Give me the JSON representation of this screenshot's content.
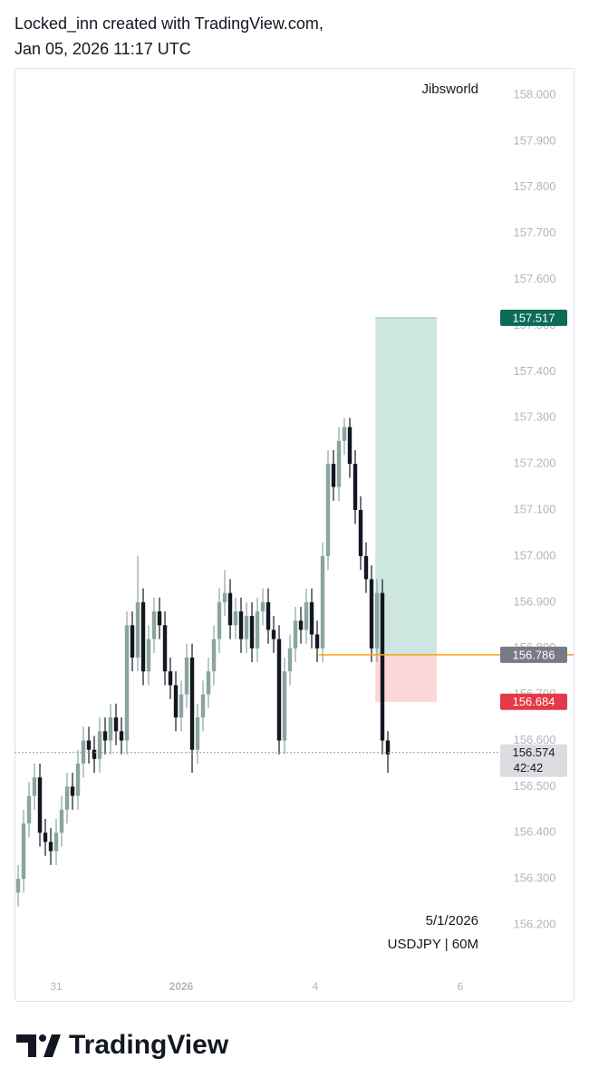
{
  "header": {
    "line1": "Locked_inn created with TradingView.com,",
    "line2": "Jan 05, 2026 11:17 UTC"
  },
  "footer": {
    "logo": "TradingView"
  },
  "chart_data": {
    "type": "candlestick",
    "watermark": "Jibsworld",
    "date_note": "5/1/2026",
    "symbol": "USDJPY | 60M",
    "up_color": "#8aa59c",
    "down_color": "#131722",
    "xlim": [
      -0.67,
      88
    ],
    "xticks": [
      {
        "value": 7,
        "label": "31"
      },
      {
        "value": 30,
        "label": "2026"
      },
      {
        "value": 54.67,
        "label": "4"
      },
      {
        "value": 81.33,
        "label": "6"
      }
    ],
    "ylim": [
      156.094,
      158.059
    ],
    "yticks": [
      {
        "value": 156.2,
        "label": "156.200"
      },
      {
        "value": 156.3,
        "label": "156.300"
      },
      {
        "value": 156.4,
        "label": "156.400"
      },
      {
        "value": 156.5,
        "label": "156.500"
      },
      {
        "value": 156.6,
        "label": "156.600"
      },
      {
        "value": 156.7,
        "label": "156.700"
      },
      {
        "value": 156.8,
        "label": "156.800"
      },
      {
        "value": 156.9,
        "label": "156.900"
      },
      {
        "value": 157.0,
        "label": "157.000"
      },
      {
        "value": 157.1,
        "label": "157.100"
      },
      {
        "value": 157.2,
        "label": "157.200"
      },
      {
        "value": 157.3,
        "label": "157.300"
      },
      {
        "value": 157.4,
        "label": "157.400"
      },
      {
        "value": 157.5,
        "label": "157.500"
      },
      {
        "value": 157.6,
        "label": "157.600"
      },
      {
        "value": 157.7,
        "label": "157.700"
      },
      {
        "value": 157.8,
        "label": "157.800"
      },
      {
        "value": 157.9,
        "label": "157.900"
      },
      {
        "value": 158.0,
        "label": "158.000"
      }
    ],
    "open": [
      156.27,
      156.3,
      156.42,
      156.48,
      156.52,
      156.4,
      156.38,
      156.36,
      156.4,
      156.45,
      156.5,
      156.48,
      156.55,
      156.6,
      156.58,
      156.56,
      156.62,
      156.6,
      156.65,
      156.62,
      156.6,
      156.85,
      156.78,
      156.9,
      156.75,
      156.82,
      156.88,
      156.85,
      156.75,
      156.72,
      156.65,
      156.7,
      156.78,
      156.58,
      156.65,
      156.7,
      156.75,
      156.82,
      156.9,
      156.92,
      156.85,
      156.88,
      156.82,
      156.87,
      156.8,
      156.88,
      156.9,
      156.84,
      156.82,
      156.6,
      156.75,
      156.8,
      156.86,
      156.84,
      156.9,
      156.83,
      156.8,
      157.0,
      157.2,
      157.15,
      157.25,
      157.28,
      157.2,
      157.1,
      157.0,
      156.95,
      156.8,
      156.92,
      156.6
    ],
    "high": [
      156.33,
      156.45,
      156.51,
      156.55,
      156.55,
      156.43,
      156.41,
      156.43,
      156.48,
      156.53,
      156.53,
      156.58,
      156.63,
      156.63,
      156.61,
      156.65,
      156.65,
      156.68,
      156.68,
      156.65,
      156.88,
      156.88,
      157.0,
      156.93,
      156.85,
      156.91,
      156.91,
      156.88,
      156.78,
      156.75,
      156.73,
      156.81,
      156.81,
      156.68,
      156.73,
      156.78,
      156.85,
      156.93,
      156.97,
      156.95,
      156.91,
      156.91,
      156.9,
      156.9,
      156.91,
      156.93,
      156.93,
      156.87,
      156.85,
      156.78,
      156.83,
      156.89,
      156.89,
      156.93,
      156.93,
      156.86,
      157.03,
      157.23,
      157.23,
      157.28,
      157.3,
      157.3,
      157.23,
      157.13,
      157.03,
      156.98,
      156.95,
      156.95,
      156.62
    ],
    "low": [
      156.24,
      156.27,
      156.39,
      156.45,
      156.37,
      156.35,
      156.33,
      156.33,
      156.37,
      156.42,
      156.45,
      156.45,
      156.52,
      156.55,
      156.53,
      156.53,
      156.57,
      156.57,
      156.59,
      156.57,
      156.57,
      156.75,
      156.75,
      156.72,
      156.72,
      156.79,
      156.82,
      156.72,
      156.69,
      156.62,
      156.62,
      156.67,
      156.53,
      156.55,
      156.62,
      156.67,
      156.72,
      156.79,
      156.87,
      156.82,
      156.82,
      156.79,
      156.79,
      156.77,
      156.77,
      156.85,
      156.81,
      156.79,
      156.57,
      156.57,
      156.72,
      156.77,
      156.81,
      156.81,
      156.8,
      156.77,
      156.77,
      156.97,
      157.12,
      157.12,
      157.22,
      157.17,
      157.07,
      156.97,
      156.92,
      156.77,
      156.77,
      156.57,
      156.53
    ],
    "close": [
      156.3,
      156.42,
      156.48,
      156.52,
      156.4,
      156.38,
      156.36,
      156.4,
      156.45,
      156.5,
      156.48,
      156.55,
      156.6,
      156.58,
      156.56,
      156.62,
      156.6,
      156.65,
      156.62,
      156.6,
      156.85,
      156.78,
      156.9,
      156.75,
      156.82,
      156.88,
      156.85,
      156.75,
      156.72,
      156.65,
      156.7,
      156.78,
      156.58,
      156.65,
      156.7,
      156.75,
      156.82,
      156.9,
      156.92,
      156.85,
      156.88,
      156.82,
      156.87,
      156.8,
      156.88,
      156.9,
      156.84,
      156.82,
      156.6,
      156.75,
      156.8,
      156.86,
      156.84,
      156.9,
      156.83,
      156.8,
      157.0,
      157.2,
      157.15,
      157.25,
      157.28,
      157.2,
      157.1,
      157.0,
      156.95,
      156.8,
      156.92,
      156.6,
      156.57
    ],
    "position": {
      "start": 65.7,
      "end": 77,
      "line_start": 55.3,
      "target": {
        "value": 157.517,
        "label": "157.517",
        "color": "#0b6b57"
      },
      "entry": {
        "value": 156.786,
        "label": "156.786",
        "color": "#787b86"
      },
      "stop": {
        "value": 156.684,
        "label": "156.684",
        "color": "#e53945"
      }
    },
    "last_price": {
      "value": 156.574,
      "label": "156.574",
      "countdown": "42:42"
    }
  }
}
